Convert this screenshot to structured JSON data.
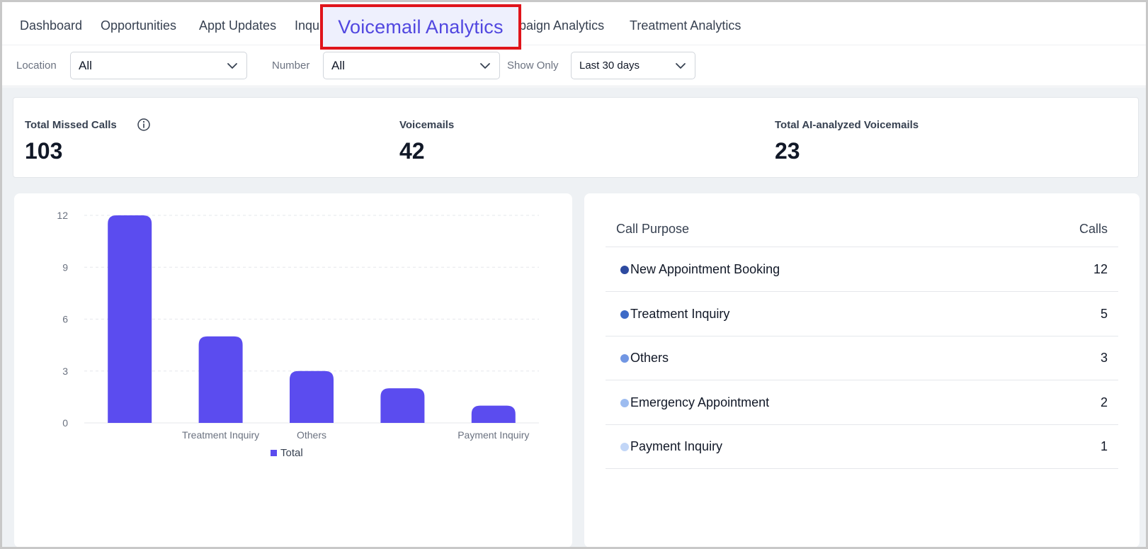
{
  "nav": {
    "tabs": [
      {
        "label": "Dashboard"
      },
      {
        "label": "Opportunities"
      },
      {
        "label": "Appt Updates"
      },
      {
        "label": "Inqu"
      },
      {
        "label": "paign Analytics"
      },
      {
        "label": "Treatment Analytics"
      }
    ],
    "active_tab": "Voicemail Analytics"
  },
  "filters": {
    "location_label": "Location",
    "location_value": "All",
    "number_label": "Number",
    "number_value": "All",
    "show_only_label": "Show Only",
    "show_only_value": "Last 30 days"
  },
  "stats": [
    {
      "label": "Total Missed Calls",
      "value": "103",
      "icon": "info-icon"
    },
    {
      "label": "Voicemails",
      "value": "42"
    },
    {
      "label": "Total AI-analyzed Voicemails",
      "value": "23"
    }
  ],
  "chart_data": {
    "type": "bar",
    "categories": [
      "New Appointment Booking",
      "Treatment Inquiry",
      "Others",
      "Emergency Appointment",
      "Payment Inquiry"
    ],
    "visible_tick_labels": [
      "",
      "Treatment Inquiry",
      "Others",
      "",
      "Payment Inquiry"
    ],
    "series": [
      {
        "name": "Total",
        "values": [
          12,
          5,
          3,
          2,
          1
        ]
      }
    ],
    "yticks": [
      0,
      3,
      6,
      9,
      12
    ],
    "ylim": [
      0,
      12
    ],
    "grid": true,
    "legend": "bottom-center",
    "color": "#5b4cef"
  },
  "table": {
    "header_purpose": "Call Purpose",
    "header_calls": "Calls",
    "rows": [
      {
        "name": "New Appointment Booking",
        "calls": "12",
        "color": "#2d4aa0"
      },
      {
        "name": "Treatment Inquiry",
        "calls": "5",
        "color": "#3d6ac7"
      },
      {
        "name": "Others",
        "calls": "3",
        "color": "#7196e3"
      },
      {
        "name": "Emergency Appointment",
        "calls": "2",
        "color": "#9dbcf0"
      },
      {
        "name": "Payment Inquiry",
        "calls": "1",
        "color": "#c2d6f7"
      }
    ]
  }
}
